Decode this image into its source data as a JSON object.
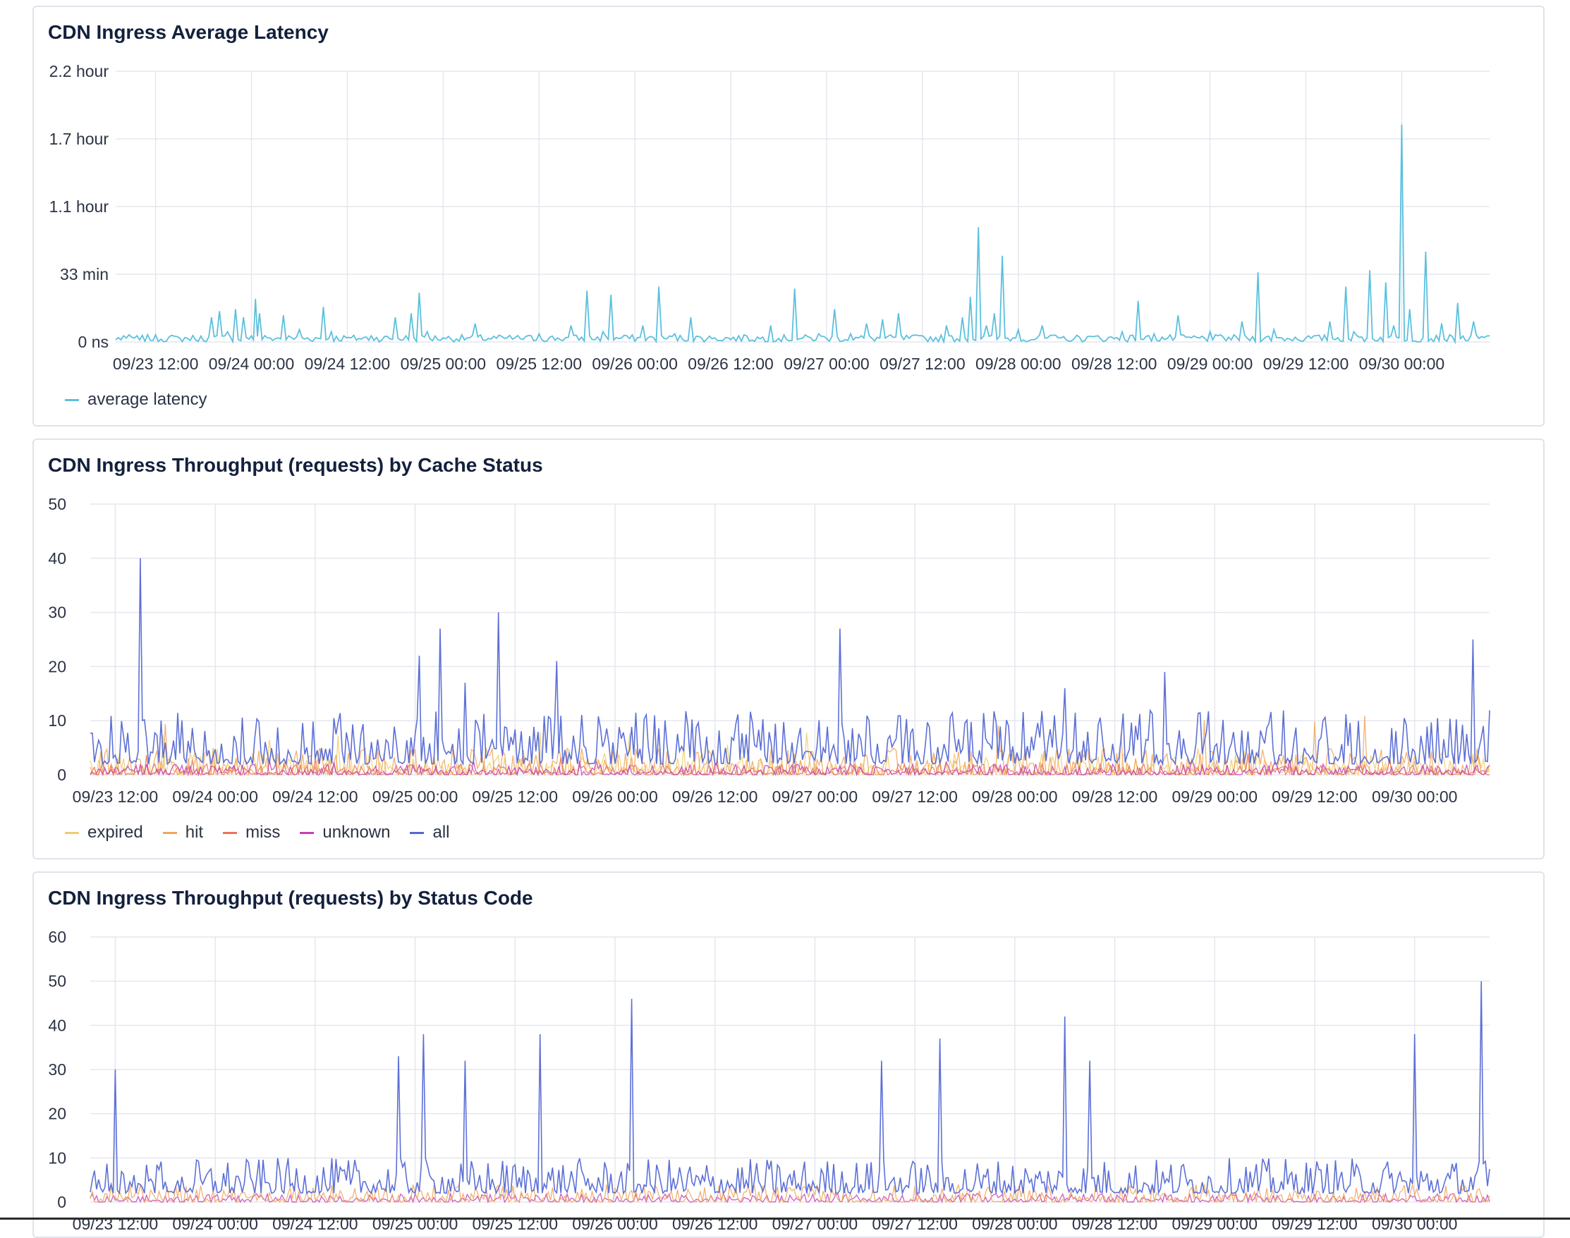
{
  "panels": [
    {
      "title": "CDN Ingress Average Latency"
    },
    {
      "title": "CDN Ingress Throughput (requests) by Cache Status"
    },
    {
      "title": "CDN Ingress Throughput (requests) by Status Code"
    }
  ],
  "chart_data": [
    {
      "type": "line",
      "title": "CDN Ingress Average Latency",
      "x_tick_labels": [
        "09/23 12:00",
        "09/24 00:00",
        "09/24 12:00",
        "09/25 00:00",
        "09/25 12:00",
        "09/26 00:00",
        "09/26 12:00",
        "09/27 00:00",
        "09/27 12:00",
        "09/28 00:00",
        "09/28 12:00",
        "09/29 00:00",
        "09/29 12:00",
        "09/30 00:00"
      ],
      "x_range": [
        "09/23 07:00",
        "09/30 11:00"
      ],
      "y_unit": "minutes",
      "y_tick_labels": [
        "0 ns",
        "33 min",
        "1.1 hour",
        "1.7 hour",
        "2.2 hour"
      ],
      "y_tick_values": [
        0,
        33,
        66,
        99,
        132
      ],
      "ylim": [
        0,
        132
      ],
      "grid": true,
      "legend_position": "bottom-left",
      "series": [
        {
          "name": "average latency",
          "color": "#5bc0de",
          "points": [
            [
              "09/23 07:00",
              1
            ],
            [
              "09/23 08:00",
              3
            ],
            [
              "09/23 10:00",
              1
            ],
            [
              "09/23 15:00",
              2
            ],
            [
              "09/23 17:00",
              1
            ],
            [
              "09/23 19:00",
              12
            ],
            [
              "09/23 20:00",
              15
            ],
            [
              "09/23 21:00",
              5
            ],
            [
              "09/23 22:00",
              16
            ],
            [
              "09/23 23:00",
              12
            ],
            [
              "09/24 00:00",
              3
            ],
            [
              "09/24 00:30",
              21
            ],
            [
              "09/24 01:00",
              14
            ],
            [
              "09/24 02:00",
              2
            ],
            [
              "09/24 04:00",
              13
            ],
            [
              "09/24 06:00",
              6
            ],
            [
              "09/24 09:00",
              17
            ],
            [
              "09/24 10:00",
              5
            ],
            [
              "09/24 12:30",
              2
            ],
            [
              "09/24 15:00",
              3
            ],
            [
              "09/24 18:00",
              12
            ],
            [
              "09/24 20:00",
              14
            ],
            [
              "09/24 21:00",
              24
            ],
            [
              "09/24 22:00",
              5
            ],
            [
              "09/25 00:00",
              2
            ],
            [
              "09/25 04:00",
              9
            ],
            [
              "09/25 08:00",
              2
            ],
            [
              "09/25 12:00",
              4
            ],
            [
              "09/25 16:00",
              8
            ],
            [
              "09/25 18:00",
              25
            ],
            [
              "09/25 20:00",
              5
            ],
            [
              "09/25 21:00",
              23
            ],
            [
              "09/25 23:00",
              3
            ],
            [
              "09/26 01:00",
              8
            ],
            [
              "09/26 03:00",
              27
            ],
            [
              "09/26 05:00",
              4
            ],
            [
              "09/26 07:00",
              12
            ],
            [
              "09/26 10:00",
              2
            ],
            [
              "09/26 14:00",
              3
            ],
            [
              "09/26 17:00",
              8
            ],
            [
              "09/26 20:00",
              26
            ],
            [
              "09/26 23:00",
              4
            ],
            [
              "09/27 01:00",
              16
            ],
            [
              "09/27 03:00",
              4
            ],
            [
              "09/27 05:00",
              9
            ],
            [
              "09/27 07:00",
              11
            ],
            [
              "09/27 09:00",
              14
            ],
            [
              "09/27 12:00",
              3
            ],
            [
              "09/27 15:00",
              8
            ],
            [
              "09/27 17:00",
              12
            ],
            [
              "09/27 18:00",
              22
            ],
            [
              "09/27 19:00",
              56
            ],
            [
              "09/27 20:00",
              8
            ],
            [
              "09/27 21:00",
              14
            ],
            [
              "09/27 22:00",
              42
            ],
            [
              "09/28 00:00",
              6
            ],
            [
              "09/28 03:00",
              8
            ],
            [
              "09/28 05:00",
              2
            ],
            [
              "09/28 06:00",
              1
            ],
            [
              "09/28 10:00",
              3
            ],
            [
              "09/28 13:00",
              5
            ],
            [
              "09/28 15:00",
              20
            ],
            [
              "09/28 17:00",
              4
            ],
            [
              "09/28 20:00",
              13
            ],
            [
              "09/29 00:00",
              5
            ],
            [
              "09/29 04:00",
              10
            ],
            [
              "09/29 06:00",
              34
            ],
            [
              "09/29 08:00",
              6
            ],
            [
              "09/29 12:00",
              2
            ],
            [
              "09/29 15:00",
              10
            ],
            [
              "09/29 17:00",
              27
            ],
            [
              "09/29 18:00",
              5
            ],
            [
              "09/29 20:00",
              35
            ],
            [
              "09/29 22:00",
              29
            ],
            [
              "09/29 23:00",
              8
            ],
            [
              "09/30 00:00",
              106
            ],
            [
              "09/30 01:00",
              16
            ],
            [
              "09/30 03:00",
              44
            ],
            [
              "09/30 05:00",
              9
            ],
            [
              "09/30 07:00",
              19
            ],
            [
              "09/30 09:00",
              10
            ],
            [
              "09/30 11:00",
              3
            ]
          ]
        }
      ]
    },
    {
      "type": "line",
      "title": "CDN Ingress Throughput (requests) by Cache Status",
      "x_tick_labels": [
        "09/23 12:00",
        "09/24 00:00",
        "09/24 12:00",
        "09/25 00:00",
        "09/25 12:00",
        "09/26 00:00",
        "09/26 12:00",
        "09/27 00:00",
        "09/27 12:00",
        "09/28 00:00",
        "09/28 12:00",
        "09/29 00:00",
        "09/29 12:00",
        "09/30 00:00"
      ],
      "x_range": [
        "09/23 09:00",
        "09/30 09:00"
      ],
      "y_tick_labels": [
        "0",
        "10",
        "20",
        "30",
        "40",
        "50"
      ],
      "ylim": [
        0,
        50
      ],
      "grid": true,
      "legend_position": "bottom-left",
      "series": [
        {
          "name": "expired",
          "color": "#f2cc6b",
          "typical_range": [
            0,
            4
          ],
          "peak": 8
        },
        {
          "name": "hit",
          "color": "#f0a55a",
          "typical_range": [
            0,
            5
          ],
          "peak": 11
        },
        {
          "name": "miss",
          "color": "#e8735a",
          "typical_range": [
            0,
            2
          ],
          "peak": 4
        },
        {
          "name": "unknown",
          "color": "#c43fb6",
          "typical_range": [
            0,
            2
          ],
          "peak": 3
        },
        {
          "name": "all",
          "color": "#5468d4",
          "typical_range": [
            2,
            12
          ],
          "spikes": [
            [
              "09/23 15:00",
              40
            ],
            [
              "09/25 00:30",
              22
            ],
            [
              "09/25 03:00",
              27
            ],
            [
              "09/25 06:00",
              17
            ],
            [
              "09/25 10:00",
              30
            ],
            [
              "09/25 17:00",
              21
            ],
            [
              "09/27 03:00",
              27
            ],
            [
              "09/28 06:00",
              16
            ],
            [
              "09/28 18:00",
              19
            ],
            [
              "09/30 07:00",
              25
            ]
          ]
        }
      ]
    },
    {
      "type": "line",
      "title": "CDN Ingress Throughput (requests) by Status Code",
      "x_tick_labels": [
        "09/23 12:00",
        "09/24 00:00",
        "09/24 12:00",
        "09/25 00:00",
        "09/25 12:00",
        "09/26 00:00",
        "09/26 12:00",
        "09/27 00:00",
        "09/27 12:00",
        "09/28 00:00",
        "09/28 12:00",
        "09/29 00:00",
        "09/29 12:00",
        "09/30 00:00"
      ],
      "x_range": [
        "09/23 09:00",
        "09/30 09:00"
      ],
      "y_tick_labels": [
        "0",
        "10",
        "20",
        "30",
        "40",
        "50",
        "60"
      ],
      "ylim": [
        0,
        60
      ],
      "grid": true,
      "series_note": "legend not visible in screenshot",
      "spikes": [
        [
          "09/23 12:00",
          30
        ],
        [
          "09/24 22:00",
          33
        ],
        [
          "09/25 01:00",
          38
        ],
        [
          "09/25 06:00",
          32
        ],
        [
          "09/25 15:00",
          38
        ],
        [
          "09/26 02:00",
          46
        ],
        [
          "09/27 08:00",
          32
        ],
        [
          "09/27 15:00",
          37
        ],
        [
          "09/28 06:00",
          42
        ],
        [
          "09/28 09:00",
          32
        ],
        [
          "09/30 00:00",
          38
        ],
        [
          "09/30 08:00",
          50
        ]
      ]
    }
  ]
}
